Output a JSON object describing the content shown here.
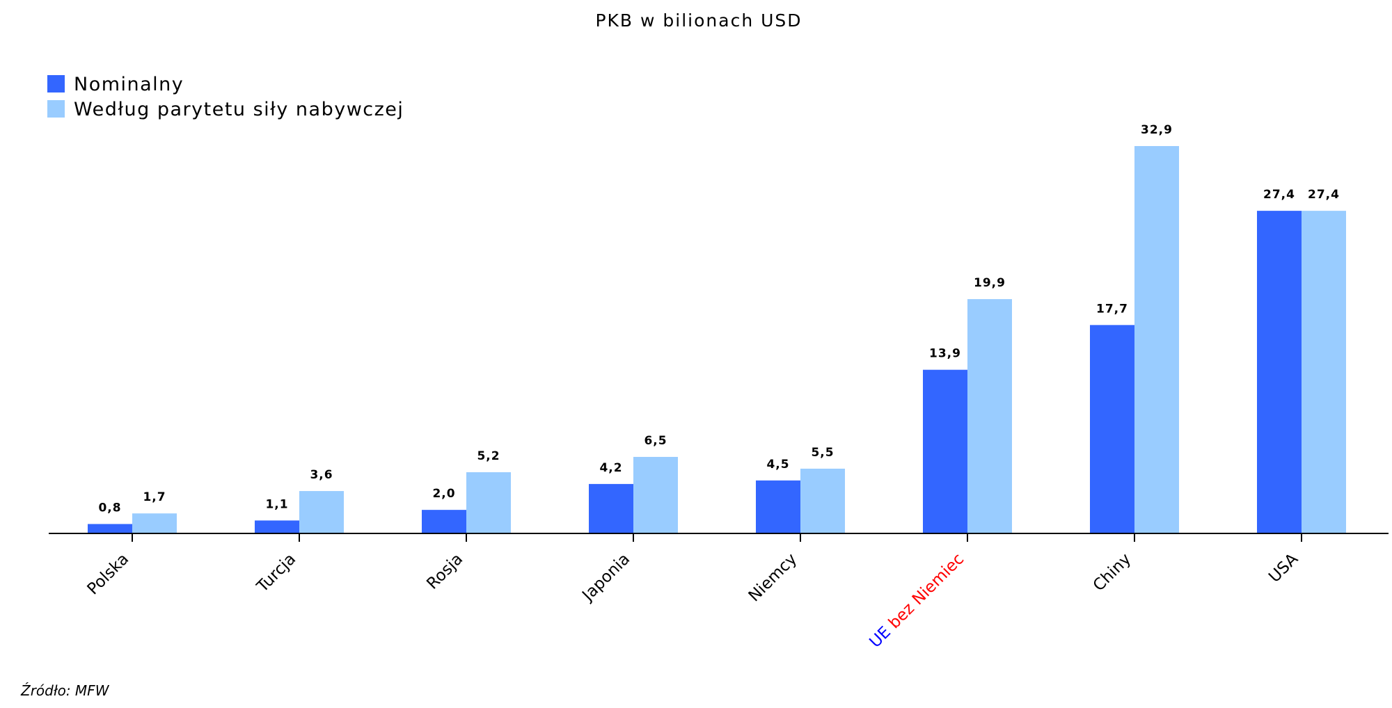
{
  "chart_data": {
    "type": "bar",
    "title": "PKB w bilionach USD",
    "categories": [
      "Polska",
      "Turcja",
      "Rosja",
      "Japonia",
      "Niemcy",
      "UE bez Niemiec",
      "Chiny",
      "USA"
    ],
    "category_label_parts": {
      "5": [
        {
          "text": "UE",
          "color": "#0000ff"
        },
        {
          "text": " bez Niemiec",
          "color": "#ff0000"
        }
      ]
    },
    "series": [
      {
        "name": "Nominalny",
        "color": "#3366ff",
        "values": [
          0.8,
          1.1,
          2.0,
          4.2,
          4.5,
          13.9,
          17.7,
          27.4
        ],
        "labels": [
          "0,8",
          "1,1",
          "2,0",
          "4,2",
          "4,5",
          "13,9",
          "17,7",
          "27,4"
        ]
      },
      {
        "name": "Według parytetu siły nabywczej",
        "color": "#99ccff",
        "values": [
          1.7,
          3.6,
          5.2,
          6.5,
          5.5,
          19.9,
          32.9,
          27.4
        ],
        "labels": [
          "1,7",
          "3,6",
          "5,2",
          "6,5",
          "5,5",
          "19,9",
          "32,9",
          "27,4"
        ]
      }
    ],
    "ylim": [
      0,
      32.9
    ],
    "grid": false,
    "legend_position": "top-left",
    "xlabel": "",
    "ylabel": ""
  },
  "source": "Źródło: MFW"
}
